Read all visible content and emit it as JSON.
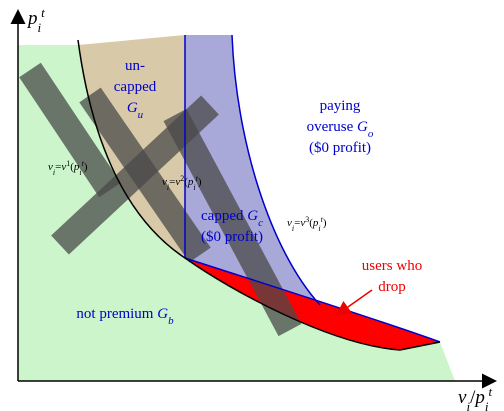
{
  "axes": {
    "y_label": [
      [
        {
          "text": "p",
          "italic": true
        },
        {
          "text": "i",
          "italic": true,
          "pos": "sub"
        },
        {
          "text": "t",
          "italic": true,
          "pos": "sup"
        }
      ]
    ],
    "x_label": [
      [
        {
          "text": "v",
          "italic": true
        },
        {
          "text": "i",
          "italic": true,
          "pos": "sub"
        },
        {
          "text": "/"
        },
        {
          "text": "p",
          "italic": true
        },
        {
          "text": "i",
          "italic": true,
          "pos": "sub"
        },
        {
          "text": "t",
          "italic": true,
          "pos": "sup"
        }
      ]
    ]
  },
  "regions": {
    "uncapped": [
      [
        {
          "text": "un-"
        }
      ],
      [
        {
          "text": "capped"
        }
      ],
      [
        {
          "text": "G",
          "italic": true
        },
        {
          "text": "u",
          "italic": true,
          "pos": "sub"
        }
      ]
    ],
    "overuse": [
      [
        {
          "text": "paying"
        }
      ],
      [
        {
          "text": "overuse "
        },
        {
          "text": "G",
          "italic": true
        },
        {
          "text": "o",
          "italic": true,
          "pos": "sub"
        }
      ],
      [
        {
          "text": "($0 profit)"
        }
      ]
    ],
    "capped": [
      [
        {
          "text": "capped "
        },
        {
          "text": "G",
          "italic": true
        },
        {
          "text": "c",
          "italic": true,
          "pos": "sub"
        }
      ],
      [
        {
          "text": "($0 profit)"
        }
      ]
    ],
    "not_premium": [
      [
        {
          "text": "not premium "
        },
        {
          "text": "G",
          "italic": true
        },
        {
          "text": "b",
          "italic": true,
          "pos": "sub"
        }
      ]
    ],
    "drop": [
      [
        {
          "text": "users who"
        }
      ],
      [
        {
          "text": "drop"
        }
      ]
    ]
  },
  "curves": {
    "v1": [
      [
        {
          "text": "v",
          "italic": true
        },
        {
          "text": "i",
          "italic": true,
          "pos": "sub"
        },
        {
          "text": "="
        },
        {
          "text": "v",
          "italic": true
        },
        {
          "text": "1",
          "pos": "sup"
        },
        {
          "text": "("
        },
        {
          "text": "p",
          "italic": true
        },
        {
          "text": "i",
          "italic": true,
          "pos": "sub"
        },
        {
          "text": "t",
          "italic": true,
          "pos": "sup"
        },
        {
          "text": ")"
        }
      ]
    ],
    "v2": [
      [
        {
          "text": "v",
          "italic": true
        },
        {
          "text": "i",
          "italic": true,
          "pos": "sub"
        },
        {
          "text": "="
        },
        {
          "text": "v",
          "italic": true
        },
        {
          "text": "2",
          "pos": "sup"
        },
        {
          "text": "("
        },
        {
          "text": "p",
          "italic": true
        },
        {
          "text": "i",
          "italic": true,
          "pos": "sub"
        },
        {
          "text": "t",
          "italic": true,
          "pos": "sup"
        },
        {
          "text": ")"
        }
      ]
    ],
    "v3": [
      [
        {
          "text": "v",
          "italic": true
        },
        {
          "text": "i",
          "italic": true,
          "pos": "sub"
        },
        {
          "text": "="
        },
        {
          "text": "v",
          "italic": true
        },
        {
          "text": "3",
          "pos": "sup"
        },
        {
          "text": "("
        },
        {
          "text": "p",
          "italic": true
        },
        {
          "text": "i",
          "italic": true,
          "pos": "sub"
        },
        {
          "text": "t",
          "italic": true,
          "pos": "sup"
        },
        {
          "text": ")"
        }
      ]
    ]
  }
}
